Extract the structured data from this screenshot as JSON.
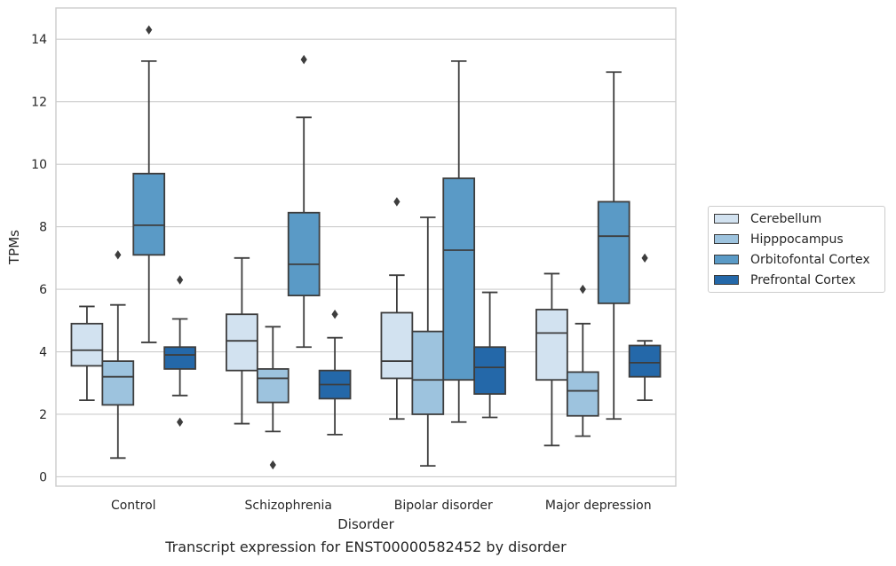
{
  "chart_data": {
    "type": "box",
    "xlabel": "Disorder",
    "ylabel": "TPMs",
    "caption": "Transcript expression for ENST00000582452 by disorder",
    "ylim": [
      -0.3,
      15
    ],
    "yticks": [
      0,
      2,
      4,
      6,
      8,
      10,
      12,
      14
    ],
    "grid": "horizontal",
    "legend_position": "right",
    "categories": [
      "Control",
      "Schizophrenia",
      "Bipolar disorder",
      "Major depression"
    ],
    "series": [
      {
        "name": "Cerebellum",
        "color": "#d2e2f0",
        "boxes": [
          {
            "whislo": 2.45,
            "q1": 3.55,
            "med": 4.05,
            "q3": 4.9,
            "whishi": 5.45,
            "fliers": []
          },
          {
            "whislo": 1.7,
            "q1": 3.4,
            "med": 4.35,
            "q3": 5.2,
            "whishi": 7.0,
            "fliers": []
          },
          {
            "whislo": 1.85,
            "q1": 3.15,
            "med": 3.7,
            "q3": 5.25,
            "whishi": 6.45,
            "fliers": [
              8.8
            ]
          },
          {
            "whislo": 1.0,
            "q1": 3.1,
            "med": 4.6,
            "q3": 5.35,
            "whishi": 6.5,
            "fliers": []
          }
        ]
      },
      {
        "name": "Hipppocampus",
        "color": "#9dc3de",
        "boxes": [
          {
            "whislo": 0.6,
            "q1": 2.3,
            "med": 3.2,
            "q3": 3.7,
            "whishi": 5.5,
            "fliers": [
              7.1
            ]
          },
          {
            "whislo": 1.45,
            "q1": 2.38,
            "med": 3.15,
            "q3": 3.45,
            "whishi": 4.8,
            "fliers": [
              0.38
            ]
          },
          {
            "whislo": 0.35,
            "q1": 2.0,
            "med": 3.1,
            "q3": 4.65,
            "whishi": 8.3,
            "fliers": []
          },
          {
            "whislo": 1.3,
            "q1": 1.95,
            "med": 2.75,
            "q3": 3.35,
            "whishi": 4.9,
            "fliers": [
              6.0
            ]
          }
        ]
      },
      {
        "name": "Orbitofontal Cortex",
        "color": "#5a9ac6",
        "boxes": [
          {
            "whislo": 4.3,
            "q1": 7.1,
            "med": 8.05,
            "q3": 9.7,
            "whishi": 13.3,
            "fliers": [
              14.3
            ]
          },
          {
            "whislo": 4.15,
            "q1": 5.8,
            "med": 6.8,
            "q3": 8.45,
            "whishi": 11.5,
            "fliers": [
              13.35
            ]
          },
          {
            "whislo": 1.75,
            "q1": 3.1,
            "med": 7.25,
            "q3": 9.55,
            "whishi": 13.3,
            "fliers": []
          },
          {
            "whislo": 1.85,
            "q1": 5.55,
            "med": 7.7,
            "q3": 8.8,
            "whishi": 12.95,
            "fliers": []
          }
        ]
      },
      {
        "name": "Prefrontal Cortex",
        "color": "#2468a9",
        "boxes": [
          {
            "whislo": 2.6,
            "q1": 3.45,
            "med": 3.9,
            "q3": 4.15,
            "whishi": 5.05,
            "fliers": [
              6.3,
              1.75
            ]
          },
          {
            "whislo": 1.35,
            "q1": 2.5,
            "med": 2.95,
            "q3": 3.4,
            "whishi": 4.45,
            "fliers": [
              5.2
            ]
          },
          {
            "whislo": 1.9,
            "q1": 2.65,
            "med": 3.5,
            "q3": 4.15,
            "whishi": 5.9,
            "fliers": []
          },
          {
            "whislo": 2.45,
            "q1": 3.2,
            "med": 3.65,
            "q3": 4.2,
            "whishi": 4.35,
            "fliers": [
              7.0
            ]
          }
        ]
      }
    ]
  }
}
